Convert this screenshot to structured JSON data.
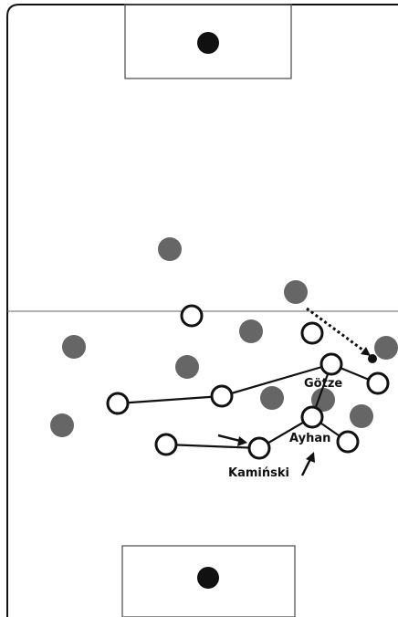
{
  "colors": {
    "pitch_line": "#111111",
    "halfway_line": "#555555",
    "team_grey": "#666666",
    "team_white_fill": "#ffffff",
    "team_white_stroke": "#111111",
    "ball": "#111111"
  },
  "labels": {
    "goetze": "Götze",
    "ayhan": "Ayhan",
    "kaminski": "Kamiński"
  },
  "icons": {
    "penalty_spot": "filled-circle",
    "arrow": "arrowhead",
    "pass": "dotted-line-arrow"
  }
}
